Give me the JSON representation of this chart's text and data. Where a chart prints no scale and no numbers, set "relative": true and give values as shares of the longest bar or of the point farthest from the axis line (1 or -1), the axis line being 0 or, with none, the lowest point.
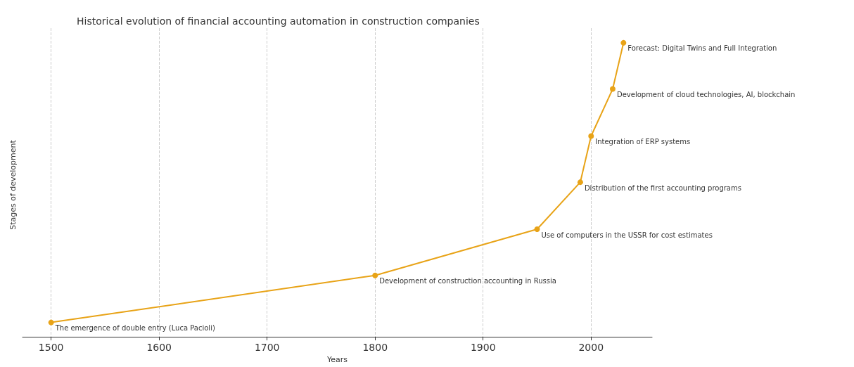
{
  "chart_data": {
    "type": "line",
    "title": "Historical evolution of financial accounting automation in construction companies",
    "xlabel": "Years",
    "ylabel": "Stages of development",
    "x": [
      1500,
      1800,
      1950,
      1990,
      2000,
      2020,
      2030
    ],
    "series": [
      {
        "color": "#e8a317",
        "values": [
          0.049,
          0.209,
          0.366,
          0.526,
          0.683,
          0.843,
          1
        ]
      }
    ],
    "relative": true,
    "xlim": [
      1473.5,
      2056.5
    ],
    "xticks": [
      1500,
      1600,
      1700,
      1800,
      1900,
      2000
    ],
    "grid": "x",
    "marker": "circle",
    "line_style": "solid",
    "tick_labels": "x",
    "annotations": [
      {
        "text": "The emergence of double entry (Luca Pacioli)",
        "x": 1500,
        "y": 0.049
      },
      {
        "text": "Development of construction accounting in Russia",
        "x": 1800,
        "y": 0.209
      },
      {
        "text": "Use of computers in the USSR for cost estimates",
        "x": 1950,
        "y": 0.366
      },
      {
        "text": "Distribution of the first accounting programs",
        "x": 1990,
        "y": 0.526
      },
      {
        "text": "Integration of ERP systems",
        "x": 2000,
        "y": 0.683
      },
      {
        "text": "Development of cloud technologies, AI, blockchain",
        "x": 2020,
        "y": 0.843
      },
      {
        "text": "Forecast: Digital Twins and Full Integration",
        "x": 2030,
        "y": 1
      }
    ]
  }
}
